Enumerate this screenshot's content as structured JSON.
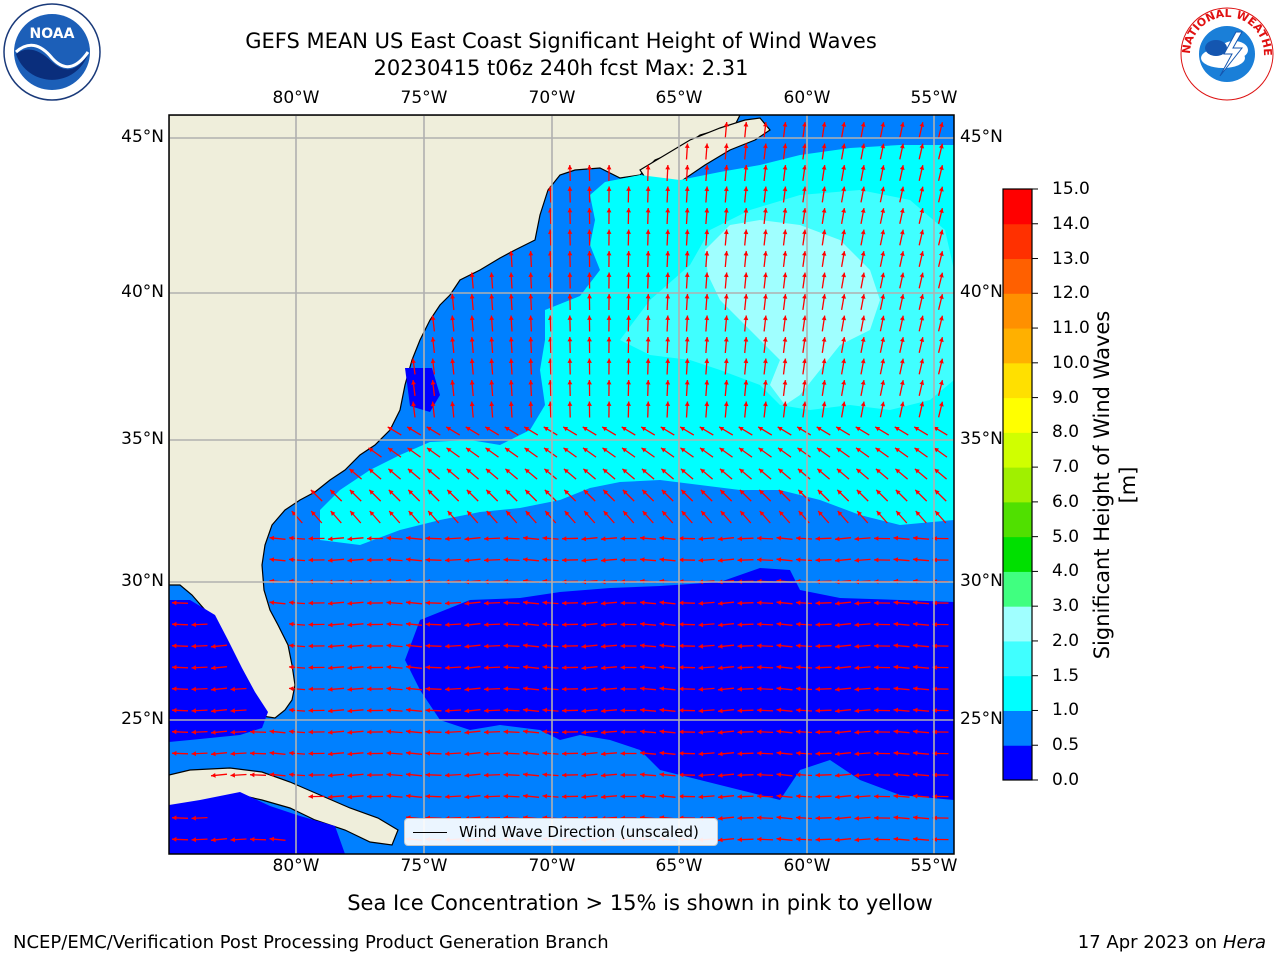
{
  "header": {
    "title_line1": "GEFS MEAN US East Coast Significant Height of Wind Waves",
    "title_line2": "20230415 t06z 240h fcst   Max: 2.31",
    "logo_left_text": "NOAA",
    "logo_right_text": "NATIONAL WEATHER SERVICE"
  },
  "map": {
    "lon_ticks": [
      "80°W",
      "75°W",
      "70°W",
      "65°W",
      "60°W",
      "55°W"
    ],
    "lat_ticks": [
      "45°N",
      "40°N",
      "35°N",
      "30°N",
      "25°N"
    ],
    "legend_label": "Wind Wave Direction (unscaled)",
    "land_color": "#efeedb",
    "arrow_color": "#ff0000"
  },
  "colorbar": {
    "label": "Significant Height of Wind Waves [m]",
    "levels": [
      "0.0",
      "0.5",
      "1.0",
      "1.5",
      "2.0",
      "3.0",
      "4.0",
      "5.0",
      "6.0",
      "7.0",
      "8.0",
      "9.0",
      "10.0",
      "11.0",
      "12.0",
      "13.0",
      "14.0",
      "15.0"
    ],
    "colors": [
      "#0000ff",
      "#0080ff",
      "#00ffff",
      "#40ffff",
      "#a0ffff",
      "#40ff80",
      "#00e000",
      "#50e000",
      "#a0f000",
      "#d0ff00",
      "#ffff00",
      "#ffe000",
      "#ffb000",
      "#ff9000",
      "#ff6000",
      "#ff3000",
      "#ff0000"
    ]
  },
  "footer": {
    "note": "Sea Ice Concentration > 15% is shown in pink to yellow",
    "credit": "NCEP/EMC/Verification Post Processing Product Generation Branch",
    "date": "17 Apr 2023 on",
    "machine": "Hera"
  }
}
